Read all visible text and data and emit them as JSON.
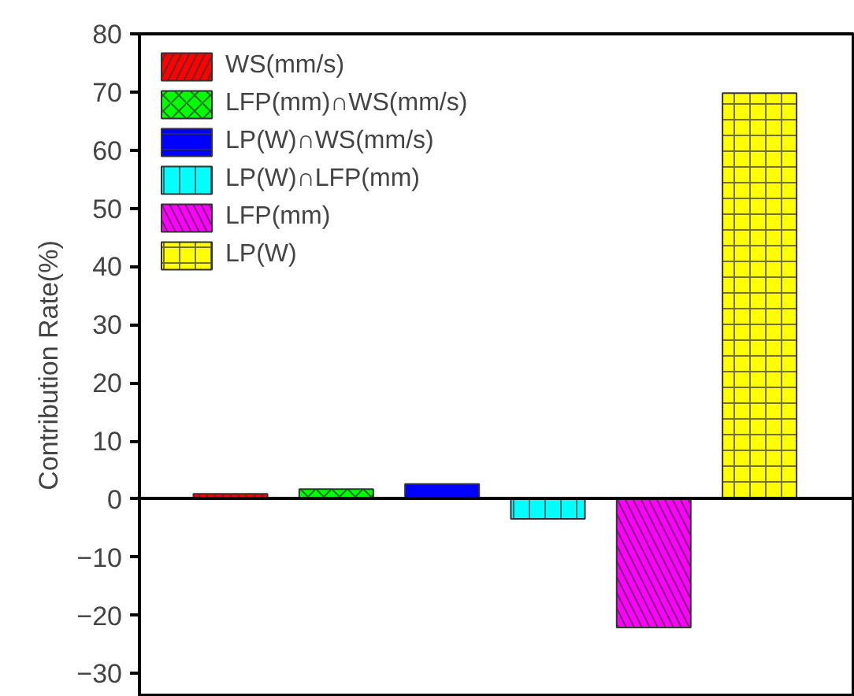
{
  "chart_data": {
    "type": "bar",
    "ylabel": "Contribution Rate(%)",
    "categories": [
      null,
      null,
      null,
      null,
      null,
      null
    ],
    "series": [
      {
        "name": "WS(mm/s)",
        "color": "#ff0000",
        "values": [
          0.9,
          null,
          null,
          null,
          null,
          null
        ]
      },
      {
        "name": "LFP(mm)∩WS(mm/s)",
        "color": "#00ff00",
        "values": [
          null,
          1.7,
          null,
          null,
          null,
          null
        ]
      },
      {
        "name": "LP(W)∩WS(mm/s)",
        "color": "#0000ff",
        "values": [
          null,
          null,
          2.6,
          null,
          null,
          null
        ]
      },
      {
        "name": "LP(W)∩LFP(mm)",
        "color": "#00ffff",
        "values": [
          null,
          null,
          null,
          -3.4,
          null,
          null
        ]
      },
      {
        "name": "LFP(mm)",
        "color": "#ff00ff",
        "values": [
          null,
          null,
          null,
          null,
          -22.1,
          null
        ]
      },
      {
        "name": "LP(W)",
        "color": "#ffff00",
        "values": [
          null,
          null,
          null,
          null,
          null,
          69.8
        ]
      }
    ],
    "ylim": [
      -34,
      80
    ],
    "yticks": [
      -30,
      -20,
      -10,
      0,
      10,
      20,
      30,
      40,
      50,
      60,
      70,
      80
    ],
    "tick_labels": "y",
    "legend": "top left"
  }
}
